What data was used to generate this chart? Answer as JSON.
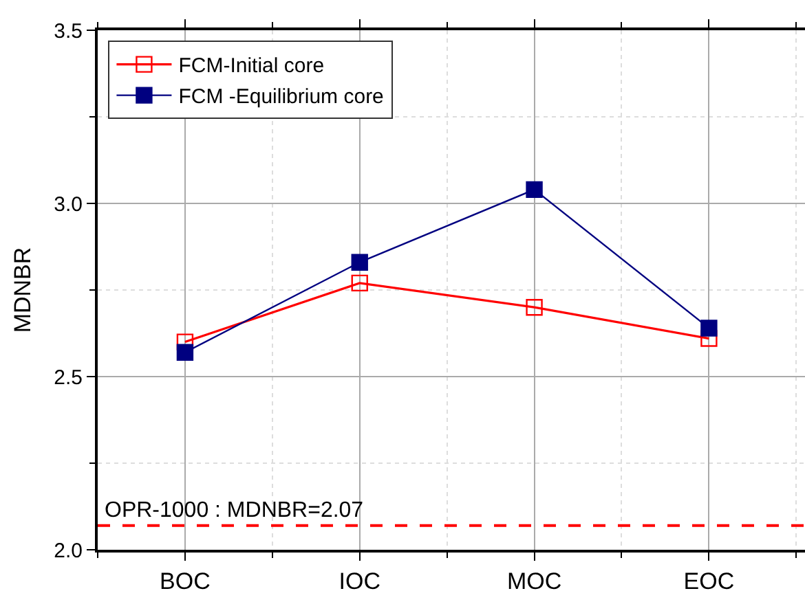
{
  "chart_data": {
    "type": "line",
    "ylabel": "MDNBR",
    "categories": [
      "BOC",
      "IOC",
      "MOC",
      "EOC"
    ],
    "series": [
      {
        "name": "FCM-Initial core",
        "color": "#ff0000",
        "values": [
          2.6,
          2.77,
          2.7,
          2.61
        ]
      },
      {
        "name": "FCM -Equilibrium core",
        "color": "#000080",
        "values": [
          2.57,
          2.83,
          3.04,
          2.64
        ]
      }
    ],
    "ylim": [
      2.0,
      3.5
    ],
    "yticks": [
      {
        "value": 2,
        "label": "2.0"
      },
      2.5,
      {
        "value": 3,
        "label": "3.0"
      },
      3.5
    ],
    "grid": true,
    "legend": "top left",
    "marker": "square",
    "line_style": "solid",
    "ref_lines": [
      {
        "axis": "y",
        "value": 2.07,
        "label": "OPR-1000 : MDNBR=2.07",
        "color": "#ff0000",
        "line_style": "dashed"
      }
    ]
  }
}
